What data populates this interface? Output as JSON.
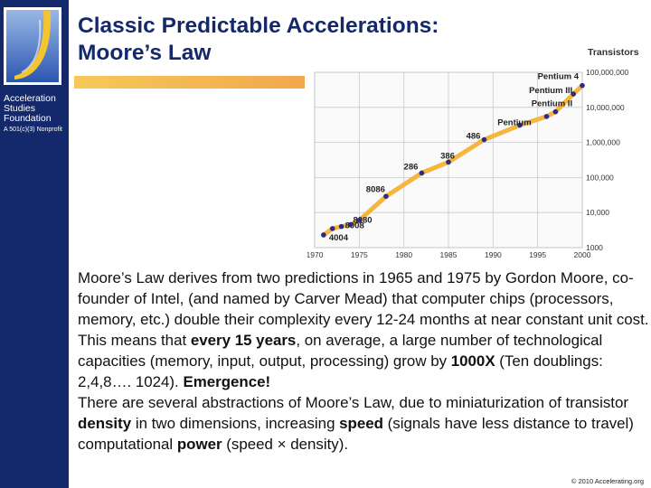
{
  "slide": {
    "title_line1": "Classic Predictable Accelerations:",
    "title_line2": "Moore’s Law",
    "org_line1": "Acceleration",
    "org_line2": "Studies",
    "org_line3": "Foundation",
    "org_sub": "A 501(c)(3) Nonprofit",
    "para1": "Moore’s Law derives from two predictions in 1965 and 1975 by Gordon Moore, co-founder of Intel, (and named by Carver Mead) that computer chips (processors, memory, etc.) double their complexity every 12-24 months at near constant unit cost.",
    "para2_a": "This means that ",
    "para2_b": "every 15 years",
    "para2_c": ", on average, a large number of technological capacities (memory, input, output, processing) grow by ",
    "para2_d": "1000X",
    "para2_e": " (Ten doublings: 2,4,8…. 1024). ",
    "para2_f": "Emergence!",
    "para3_a": "There are several abstractions of Moore’s Law, due to miniaturization of transistor ",
    "para3_b": "density",
    "para3_c": " in two dimensions, increasing ",
    "para3_d": "speed",
    "para3_e": " (signals have less distance to travel) computational ",
    "para3_f": "power",
    "para3_g": " (speed × density).",
    "copyright": "© 2010 Accelerating.org"
  },
  "colors": {
    "navy": "#14296b",
    "line": "#f4b63c",
    "point": "#2c2c86",
    "grid": "#c9c9c9"
  },
  "chart_data": {
    "type": "line",
    "title": "Transistors",
    "x_ticks": [
      1970,
      1975,
      1980,
      1985,
      1990,
      1995,
      2000
    ],
    "xlim": [
      1970,
      2000
    ],
    "y_scale": "log",
    "y_ticks": [
      {
        "value": 1000,
        "label": "1000"
      },
      {
        "value": 10000,
        "label": "10,000"
      },
      {
        "value": 100000,
        "label": "100,000"
      },
      {
        "value": 1000000,
        "label": "1,000,000"
      },
      {
        "value": 10000000,
        "label": "10,000,000"
      },
      {
        "value": 100000000,
        "label": "100,000,000"
      }
    ],
    "ylim": [
      1000,
      100000000
    ],
    "grid": true,
    "points": [
      {
        "x": 1971,
        "y": 2300,
        "label": "4004"
      },
      {
        "x": 1972,
        "y": 3500,
        "label": ""
      },
      {
        "x": 1973,
        "y": 4000,
        "label": "8008"
      },
      {
        "x": 1974,
        "y": 4500,
        "label": "8080"
      },
      {
        "x": 1975,
        "y": 6000,
        "label": ""
      },
      {
        "x": 1978,
        "y": 29000,
        "label": "8086"
      },
      {
        "x": 1982,
        "y": 134000,
        "label": "286"
      },
      {
        "x": 1985,
        "y": 275000,
        "label": "386"
      },
      {
        "x": 1989,
        "y": 1200000,
        "label": "486"
      },
      {
        "x": 1993,
        "y": 3100000,
        "label": "Pentium"
      },
      {
        "x": 1996,
        "y": 5500000,
        "label": ""
      },
      {
        "x": 1997,
        "y": 7500000,
        "label": "Pentium II"
      },
      {
        "x": 1999,
        "y": 24000000,
        "label": "Pentium III"
      },
      {
        "x": 2000,
        "y": 42000000,
        "label": "Pentium 4"
      }
    ]
  }
}
